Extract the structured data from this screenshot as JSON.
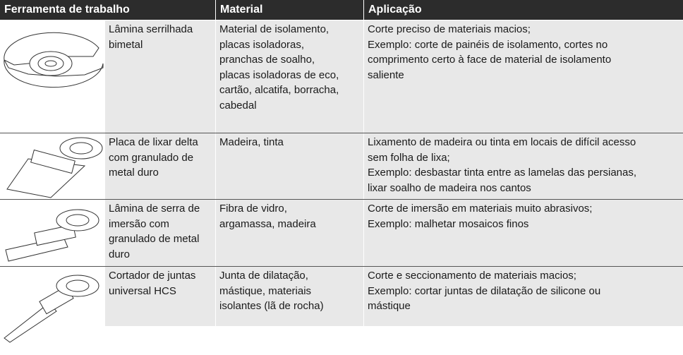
{
  "table": {
    "headers": [
      "Ferramenta de trabalho",
      "Material",
      "Aplicação"
    ],
    "rows": [
      {
        "tool": [
          "Lâmina serrilhada",
          "bimetal"
        ],
        "material": [
          "Material de isolamento,",
          "placas isoladoras,",
          "pranchas de soalho,",
          "placas isoladoras de eco,",
          "cartão, alcatifa, borracha,",
          "cabedal"
        ],
        "application": [
          "Corte preciso de materiais macios;",
          "Exemplo: corte de painéis de isolamento, cortes no",
          "comprimento certo à face de material de isolamento",
          "saliente"
        ]
      },
      {
        "tool": [
          "Placa de lixar delta",
          "com granulado de",
          "metal duro"
        ],
        "material": [
          "Madeira, tinta"
        ],
        "application": [
          "Lixamento de madeira ou tinta em locais de difícil acesso",
          "sem folha de lixa;",
          "Exemplo: desbastar tinta entre as lamelas das persianas,",
          "lixar soalho de madeira nos cantos"
        ]
      },
      {
        "tool": [
          "Lâmina de serra de",
          "imersão com",
          "granulado de metal",
          "duro"
        ],
        "material": [
          "Fibra de vidro,",
          "argamassa, madeira"
        ],
        "application": [
          "Corte de imersão em materiais muito abrasivos;",
          "Exemplo: malhetar mosaicos finos"
        ]
      },
      {
        "tool": [
          "Cortador de juntas",
          "universal HCS"
        ],
        "material": [
          "Junta de dilatação,",
          "mástique, materiais",
          "isolantes (lã de rocha)"
        ],
        "application": [
          "Corte e seccionamento de materiais macios;",
          "Exemplo: cortar juntas de dilatação de silicone ou",
          "mástique"
        ]
      }
    ]
  }
}
